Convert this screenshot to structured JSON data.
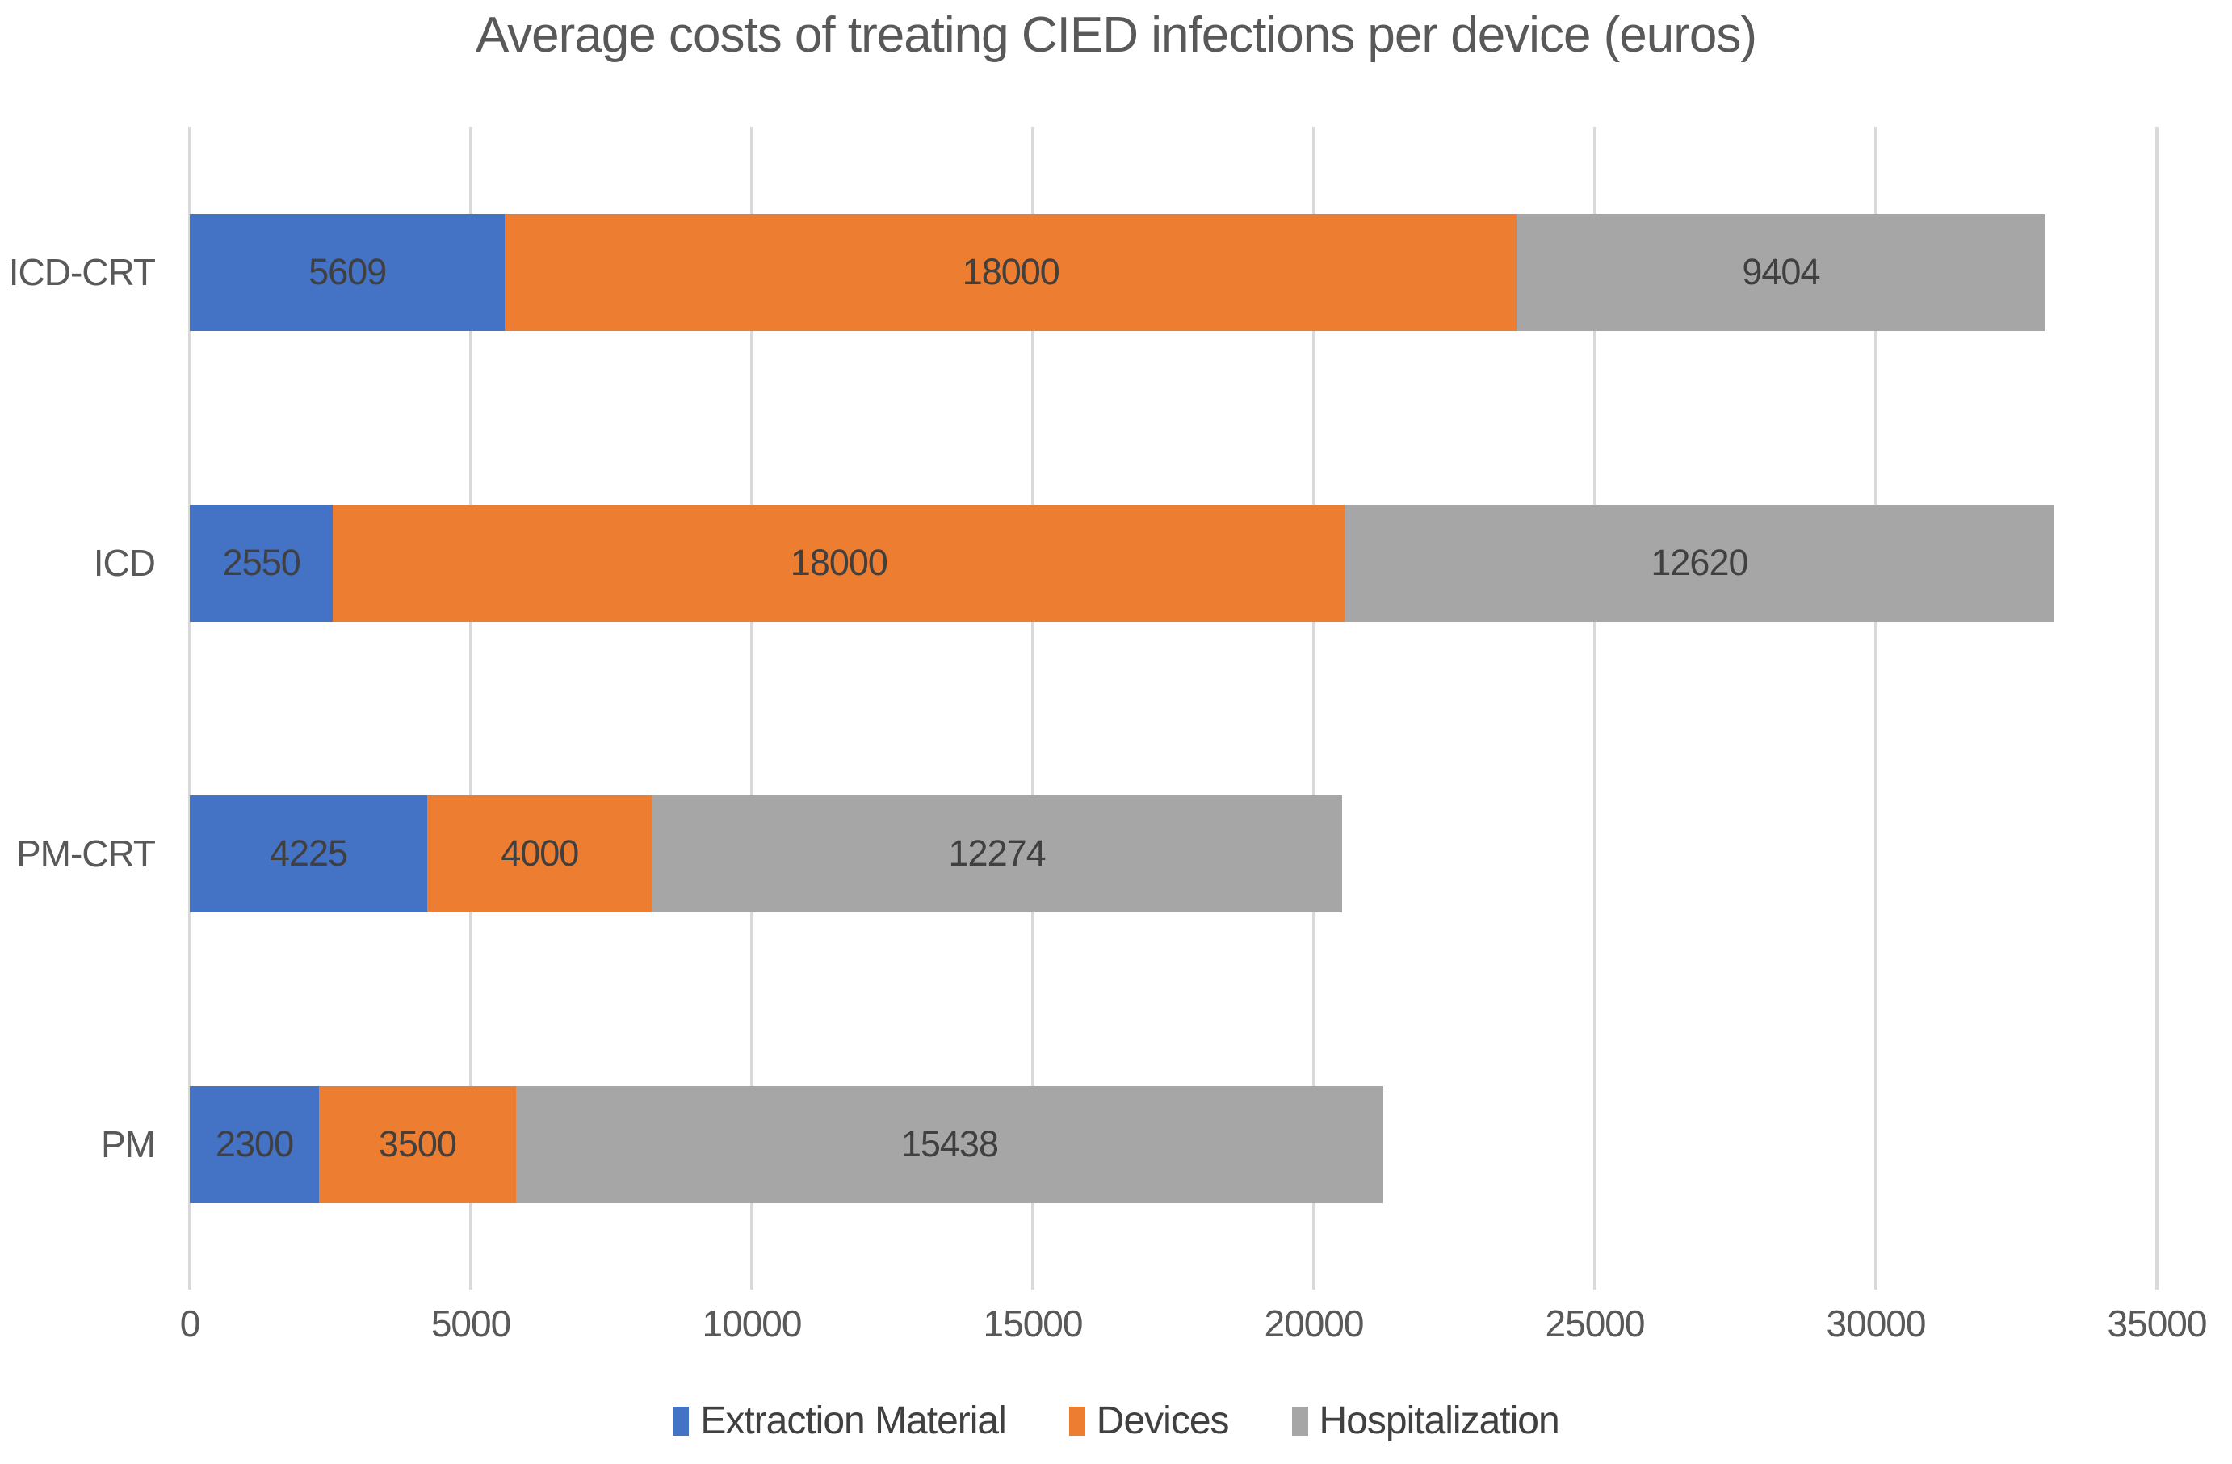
{
  "chart_data": {
    "type": "bar",
    "orientation": "horizontal",
    "stacked": true,
    "title": "Average costs of treating CIED infections per device (euros)",
    "categories": [
      "ICD-CRT",
      "ICD",
      "PM-CRT",
      "PM"
    ],
    "series": [
      {
        "name": "Extraction Material",
        "color": "#4472C4",
        "values": [
          5609,
          2550,
          4225,
          2300
        ]
      },
      {
        "name": "Devices",
        "color": "#ED7D31",
        "values": [
          18000,
          18000,
          4000,
          3500
        ]
      },
      {
        "name": "Hospitalization",
        "color": "#A6A6A6",
        "values": [
          9404,
          12620,
          12274,
          15438
        ]
      }
    ],
    "totals": [
      33013,
      33170,
      20499,
      21238
    ],
    "xlabel": "",
    "ylabel": "",
    "xlim": [
      0,
      35000
    ],
    "x_ticks": [
      0,
      5000,
      10000,
      15000,
      20000,
      25000,
      30000,
      35000
    ],
    "grid": "vertical-only",
    "grid_color": "#D9D9D9",
    "legend_position": "bottom",
    "colors": {
      "title_text": "#595959",
      "axis_text": "#595959",
      "data_label_text": "#404040",
      "legend_text": "#404040",
      "background": "#FFFFFF"
    }
  }
}
